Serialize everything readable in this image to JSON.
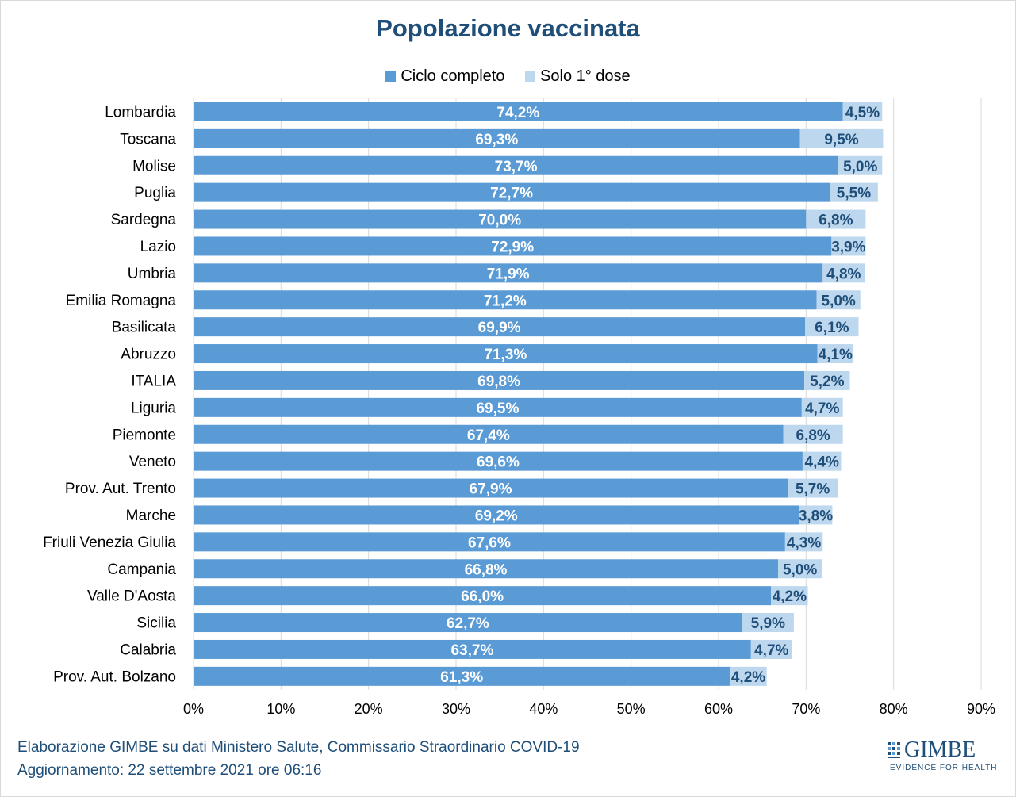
{
  "colors": {
    "series1": "#5b9bd5",
    "series2": "#bdd7ee",
    "label1": "#ffffff",
    "label2": "#1f4e79",
    "title": "#1f4e79",
    "grid": "#d9d9d9"
  },
  "footer": {
    "line1_org": "Elaborazione GIMBE",
    "line1_rest": " su dati Ministero Salute, Commissario Straordinario COVID-19",
    "line2": "Aggiornamento: 22 settembre 2021 ore 06:16"
  },
  "logo": {
    "text": "GIMBE",
    "tagline": "EVIDENCE FOR HEALTH",
    "icon": "gimbe-logo-icon"
  },
  "chart_data": {
    "type": "bar",
    "orientation": "horizontal",
    "stacked": true,
    "title": "Popolazione vaccinata",
    "legend_position": "top",
    "grid": true,
    "xlim": [
      0,
      90
    ],
    "x_ticks": [
      "0%",
      "10%",
      "20%",
      "30%",
      "40%",
      "50%",
      "60%",
      "70%",
      "80%",
      "90%"
    ],
    "categories": [
      "Lombardia",
      "Toscana",
      "Molise",
      "Puglia",
      "Sardegna",
      "Lazio",
      "Umbria",
      "Emilia Romagna",
      "Basilicata",
      "Abruzzo",
      "ITALIA",
      "Liguria",
      "Piemonte",
      "Veneto",
      "Prov. Aut. Trento",
      "Marche",
      "Friuli Venezia Giulia",
      "Campania",
      "Valle D'Aosta",
      "Sicilia",
      "Calabria",
      "Prov. Aut. Bolzano"
    ],
    "series": [
      {
        "name": "Ciclo completo",
        "values": [
          74.2,
          69.3,
          73.7,
          72.7,
          70.0,
          72.9,
          71.9,
          71.2,
          69.9,
          71.3,
          69.8,
          69.5,
          67.4,
          69.6,
          67.9,
          69.2,
          67.6,
          66.8,
          66.0,
          62.7,
          63.7,
          61.3
        ],
        "labels": [
          "74,2%",
          "69,3%",
          "73,7%",
          "72,7%",
          "70,0%",
          "72,9%",
          "71,9%",
          "71,2%",
          "69,9%",
          "71,3%",
          "69,8%",
          "69,5%",
          "67,4%",
          "69,6%",
          "67,9%",
          "69,2%",
          "67,6%",
          "66,8%",
          "66,0%",
          "62,7%",
          "63,7%",
          "61,3%"
        ]
      },
      {
        "name": "Solo 1° dose",
        "values": [
          4.5,
          9.5,
          5.0,
          5.5,
          6.8,
          3.9,
          4.8,
          5.0,
          6.1,
          4.1,
          5.2,
          4.7,
          6.8,
          4.4,
          5.7,
          3.8,
          4.3,
          5.0,
          4.2,
          5.9,
          4.7,
          4.2
        ],
        "labels": [
          "4,5%",
          "9,5%",
          "5,0%",
          "5,5%",
          "6,8%",
          "3,9%",
          "4,8%",
          "5,0%",
          "6,1%",
          "4,1%",
          "5,2%",
          "4,7%",
          "6,8%",
          "4,4%",
          "5,7%",
          "3,8%",
          "4,3%",
          "5,0%",
          "4,2%",
          "5,9%",
          "4,7%",
          "4,2%"
        ]
      }
    ]
  }
}
